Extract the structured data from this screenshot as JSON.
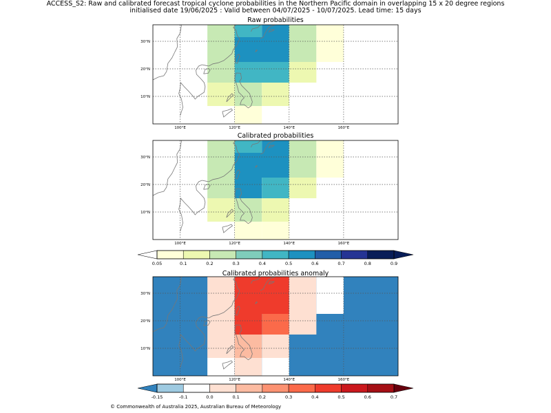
{
  "header": {
    "line1": "ACCESS_S2: Raw and calibrated forecast tropical cyclone probabilities in the Northern Pacific domain in overlapping 15 x 20 degree regions",
    "line2": "initialised date 19/06/2025 :  Valid between 04/07/2025 - 10/07/2025. Lead time: 15 days"
  },
  "footer": "© Commonwealth of Australia 2025, Australian Bureau of Meteorology",
  "chart_data": [
    {
      "type": "heatmap",
      "title": "Raw probabilities",
      "xlim": [
        90,
        180
      ],
      "ylim": [
        0,
        36
      ],
      "xticks": [
        "100°E",
        "120°E",
        "140°E",
        "160°E"
      ],
      "yticks": [
        "10°N",
        "20°N",
        "30°N"
      ],
      "cells": [
        {
          "lon": [
            110,
            120
          ],
          "lat": [
            28.5,
            36
          ],
          "value": 0.2
        },
        {
          "lon": [
            120,
            130
          ],
          "lat": [
            31.5,
            36
          ],
          "value": 0.4
        },
        {
          "lon": [
            130,
            140
          ],
          "lat": [
            31.5,
            36
          ],
          "value": 0.5
        },
        {
          "lon": [
            120,
            140
          ],
          "lat": [
            22.5,
            31.5
          ],
          "value": 0.5
        },
        {
          "lon": [
            140,
            150
          ],
          "lat": [
            22.5,
            36
          ],
          "value": 0.2
        },
        {
          "lon": [
            150,
            160
          ],
          "lat": [
            22.5,
            36
          ],
          "value": 0.05
        },
        {
          "lon": [
            110,
            120
          ],
          "lat": [
            15,
            28.5
          ],
          "value": 0.2
        },
        {
          "lon": [
            120,
            140
          ],
          "lat": [
            15,
            22.5
          ],
          "value": 0.4
        },
        {
          "lon": [
            140,
            150
          ],
          "lat": [
            15,
            22.5
          ],
          "value": 0.1
        },
        {
          "lon": [
            110,
            120
          ],
          "lat": [
            6.5,
            15
          ],
          "value": 0.1
        },
        {
          "lon": [
            120,
            130
          ],
          "lat": [
            6.5,
            15
          ],
          "value": 0.2
        },
        {
          "lon": [
            130,
            140
          ],
          "lat": [
            6.5,
            15
          ],
          "value": 0.1
        },
        {
          "lon": [
            120,
            130
          ],
          "lat": [
            0,
            6.5
          ],
          "value": 0.05
        }
      ]
    },
    {
      "type": "heatmap",
      "title": "Calibrated probabilities",
      "xlim": [
        90,
        180
      ],
      "ylim": [
        0,
        36
      ],
      "xticks": [
        "100°E",
        "120°E",
        "140°E",
        "160°E"
      ],
      "yticks": [
        "10°N",
        "20°N",
        "30°N"
      ],
      "cells": [
        {
          "lon": [
            110,
            120
          ],
          "lat": [
            28.5,
            36
          ],
          "value": 0.2
        },
        {
          "lon": [
            120,
            130
          ],
          "lat": [
            31.5,
            36
          ],
          "value": 0.4
        },
        {
          "lon": [
            130,
            140
          ],
          "lat": [
            31.5,
            36
          ],
          "value": 0.5
        },
        {
          "lon": [
            120,
            140
          ],
          "lat": [
            22.5,
            31.5
          ],
          "value": 0.5
        },
        {
          "lon": [
            140,
            150
          ],
          "lat": [
            22.5,
            36
          ],
          "value": 0.2
        },
        {
          "lon": [
            150,
            160
          ],
          "lat": [
            22.5,
            36
          ],
          "value": 0.05
        },
        {
          "lon": [
            110,
            120
          ],
          "lat": [
            15,
            28.5
          ],
          "value": 0.2
        },
        {
          "lon": [
            120,
            130
          ],
          "lat": [
            15,
            22.5
          ],
          "value": 0.5
        },
        {
          "lon": [
            130,
            140
          ],
          "lat": [
            15,
            22.5
          ],
          "value": 0.4
        },
        {
          "lon": [
            140,
            150
          ],
          "lat": [
            15,
            22.5
          ],
          "value": 0.1
        },
        {
          "lon": [
            110,
            120
          ],
          "lat": [
            6.5,
            15
          ],
          "value": 0.1
        },
        {
          "lon": [
            120,
            130
          ],
          "lat": [
            6.5,
            15
          ],
          "value": 0.2
        },
        {
          "lon": [
            130,
            140
          ],
          "lat": [
            6.5,
            15
          ],
          "value": 0.1
        },
        {
          "lon": [
            120,
            130
          ],
          "lat": [
            0,
            6.5
          ],
          "value": 0.05
        },
        {
          "lon": [
            130,
            140
          ],
          "lat": [
            0,
            6.5
          ],
          "value": 0.05
        }
      ]
    },
    {
      "type": "heatmap",
      "title": "Calibrated probabilities anomaly",
      "xlim": [
        90,
        180
      ],
      "ylim": [
        0,
        36
      ],
      "xticks": [
        "100°E",
        "120°E",
        "140°E",
        "160°E"
      ],
      "yticks": [
        "10°N",
        "20°N",
        "30°N"
      ],
      "background_value": -0.2,
      "cells": [
        {
          "lon": [
            110,
            120
          ],
          "lat": [
            22.5,
            36
          ],
          "value": 0.05
        },
        {
          "lon": [
            120,
            140
          ],
          "lat": [
            31.5,
            36
          ],
          "value": 0.4
        },
        {
          "lon": [
            120,
            140
          ],
          "lat": [
            22.5,
            31.5
          ],
          "value": 0.4
        },
        {
          "lon": [
            140,
            150
          ],
          "lat": [
            22.5,
            36
          ],
          "value": 0.05
        },
        {
          "lon": [
            150,
            160
          ],
          "lat": [
            22.5,
            36
          ],
          "value": -0.1
        },
        {
          "lon": [
            110,
            120
          ],
          "lat": [
            15,
            22.5
          ],
          "value": 0.05
        },
        {
          "lon": [
            120,
            130
          ],
          "lat": [
            15,
            22.5
          ],
          "value": 0.4
        },
        {
          "lon": [
            130,
            140
          ],
          "lat": [
            15,
            22.5
          ],
          "value": 0.3
        },
        {
          "lon": [
            140,
            150
          ],
          "lat": [
            15,
            22.5
          ],
          "value": 0.0
        },
        {
          "lon": [
            110,
            120
          ],
          "lat": [
            6.5,
            15
          ],
          "value": 0.0
        },
        {
          "lon": [
            120,
            130
          ],
          "lat": [
            6.5,
            15
          ],
          "value": 0.1
        },
        {
          "lon": [
            130,
            140
          ],
          "lat": [
            6.5,
            15
          ],
          "value": 0.0
        },
        {
          "lon": [
            110,
            120
          ],
          "lat": [
            0,
            6.5
          ],
          "value": -0.1
        },
        {
          "lon": [
            120,
            130
          ],
          "lat": [
            0,
            6.5
          ],
          "value": 0.0
        },
        {
          "lon": [
            130,
            140
          ],
          "lat": [
            0,
            6.5
          ],
          "value": -0.1
        }
      ]
    }
  ],
  "colorbars": [
    {
      "name": "probability",
      "labels": [
        "0.05",
        "0.1",
        "0.2",
        "0.3",
        "0.4",
        "0.5",
        "0.6",
        "0.7",
        "0.8",
        "0.9"
      ],
      "bounds": [
        0.05,
        0.1,
        0.2,
        0.3,
        0.4,
        0.5,
        0.6,
        0.7,
        0.8,
        0.9
      ],
      "under_color": "#ffffff",
      "over_color": "#081d58",
      "colors": [
        "#ffffd9",
        "#edf8b1",
        "#c7e9b4",
        "#7fcdbb",
        "#41b6c4",
        "#1d91c0",
        "#225ea8",
        "#253494",
        "#081d58"
      ]
    },
    {
      "name": "anomaly",
      "labels": [
        "-0.15",
        "-0.1",
        "0.0",
        "0.1",
        "0.2",
        "0.3",
        "0.4",
        "0.5",
        "0.6",
        "0.7"
      ],
      "bounds": [
        -0.15,
        -0.1,
        0.0,
        0.1,
        0.2,
        0.3,
        0.4,
        0.5,
        0.6,
        0.7
      ],
      "under_color": "#3182bd",
      "over_color": "#67000d",
      "colors": [
        "#9ecae1",
        "#ffffff",
        "#fee0d2",
        "#fcbba1",
        "#fc9272",
        "#fb6a4a",
        "#ef3b2c",
        "#cb181d",
        "#a50f15"
      ]
    }
  ]
}
